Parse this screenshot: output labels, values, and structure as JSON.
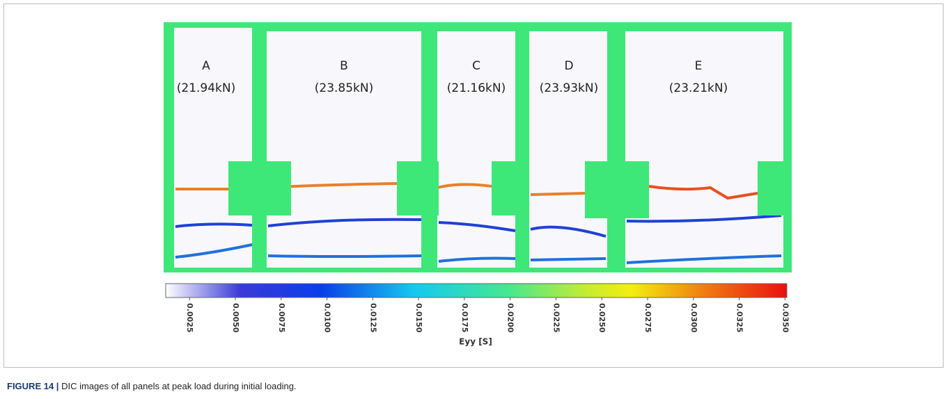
{
  "figure": {
    "panels": [
      {
        "letter": "A",
        "load": "(21.94kN)"
      },
      {
        "letter": "B",
        "load": "(23.85kN)"
      },
      {
        "letter": "C",
        "load": "(21.16kN)"
      },
      {
        "letter": "D",
        "load": "(23.93kN)"
      },
      {
        "letter": "E",
        "load": "(23.21kN)"
      }
    ],
    "colorbar": {
      "lim": [
        0.0012,
        0.0351
      ],
      "ticks": [
        {
          "value": 0.0025,
          "label": "0.0025"
        },
        {
          "value": 0.005,
          "label": "0.0050"
        },
        {
          "value": 0.0075,
          "label": "0.0075"
        },
        {
          "value": 0.01,
          "label": "0.0100"
        },
        {
          "value": 0.0125,
          "label": "0.0125"
        },
        {
          "value": 0.015,
          "label": "0.0150"
        },
        {
          "value": 0.0175,
          "label": "0.0175"
        },
        {
          "value": 0.02,
          "label": "0.0200"
        },
        {
          "value": 0.0225,
          "label": "0.0225"
        },
        {
          "value": 0.025,
          "label": "0.0250"
        },
        {
          "value": 0.0275,
          "label": "0.0275"
        },
        {
          "value": 0.03,
          "label": "0.0300"
        },
        {
          "value": 0.0325,
          "label": "0.0325"
        },
        {
          "value": 0.035,
          "label": "0.0350"
        }
      ],
      "label": "Eyy [S]"
    },
    "caption": {
      "label": "FIGURE 14 |",
      "text": "DIC images of all panels at peak load during initial loading."
    }
  }
}
